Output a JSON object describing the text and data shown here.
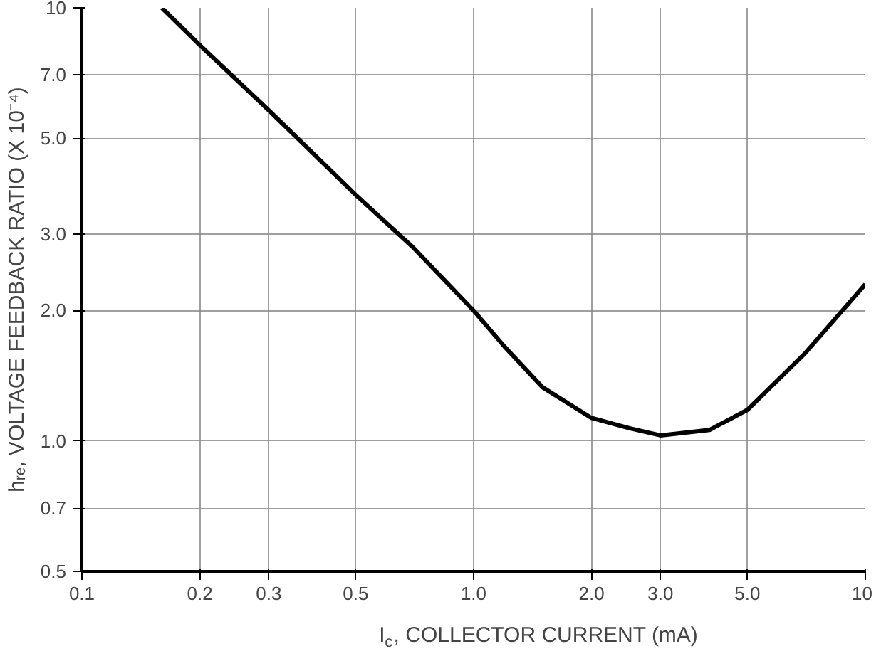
{
  "chart_data": {
    "type": "line",
    "xlabel": "I$_{c}$, COLLECTOR CURRENT (mA)",
    "ylabel": "hᵣₑ, VOLTAGE FEEDBACK RATIO (X 10⁻⁴)",
    "x": [
      0.16,
      0.2,
      0.3,
      0.5,
      0.7,
      1.0,
      1.2,
      1.5,
      2.0,
      2.5,
      3.0,
      4.0,
      5.0,
      7.0,
      10
    ],
    "series": [
      {
        "color": "#000000",
        "values": [
          10,
          8.2,
          5.8,
          3.7,
          2.8,
          2.0,
          1.65,
          1.33,
          1.13,
          1.07,
          1.03,
          1.06,
          1.18,
          1.59,
          2.3
        ]
      }
    ],
    "log": "xy",
    "xlim": [
      0.1,
      10
    ],
    "ylim": [
      0.5,
      10
    ],
    "xticks": [
      0.1,
      0.2,
      0.3,
      0.5,
      {
        "value": 1,
        "label": "1.0"
      },
      {
        "value": 2,
        "label": "2.0"
      },
      {
        "value": 3,
        "label": "3.0"
      },
      {
        "value": 5,
        "label": "5.0"
      },
      10
    ],
    "yticks": [
      0.5,
      0.7,
      {
        "value": 1,
        "label": "1.0"
      },
      {
        "value": 2,
        "label": "2.0"
      },
      {
        "value": 3,
        "label": "3.0"
      },
      {
        "value": 5,
        "label": "5.0"
      },
      {
        "value": 7,
        "label": "7.0"
      },
      10
    ],
    "grid": true,
    "line_style": "solid",
    "marker": "none"
  }
}
